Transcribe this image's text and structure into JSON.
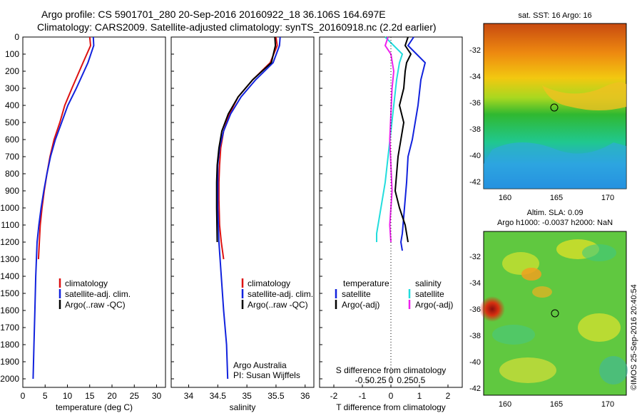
{
  "header": {
    "line1": "Argo profile: CS 5901701_280 20-Sep-2016 20160922_18 36.106S 164.697E",
    "line2": "Climatology: CARS2009. Satellite-adjusted climatology: synTS_20160918.nc (2.2d earlier)"
  },
  "colors": {
    "climatology": "#dd1111",
    "satellite": "#1122dd",
    "argo": "#000000",
    "salinity_sat": "#22dddd",
    "salinity_argo": "#ee22ee"
  },
  "depth_ticks": [
    "0",
    "100",
    "200",
    "300",
    "400",
    "500",
    "600",
    "700",
    "800",
    "900",
    "1000",
    "1100",
    "1200",
    "1300",
    "1400",
    "1500",
    "1600",
    "1700",
    "1800",
    "1900",
    "2000"
  ],
  "legend1": {
    "climatology": "climatology",
    "satellite": "satellite-adj. clim.",
    "argo": "Argo(..raw -QC)"
  },
  "legend3": {
    "temperature": "temperature",
    "salinity": "salinity",
    "t_sat": "satellite",
    "t_argo": "Argo(-adj)",
    "s_sat": "satellite",
    "s_argo": "Argo(-adj)"
  },
  "notes": {
    "line1": "Argo Australia",
    "line2": "PI: Susan Wijffels"
  },
  "map1": {
    "title": "sat. SST: 16 Argo: 16",
    "yticks": [
      "-32",
      "-34",
      "-36",
      "-38",
      "-40",
      "-42"
    ],
    "xticks": [
      "160",
      "165",
      "170"
    ]
  },
  "map2": {
    "title1": "Altim. SLA: 0.09",
    "title2": "Argo h1000: -0.0037 h2000: NaN",
    "yticks": [
      "-32",
      "-34",
      "-36",
      "-38",
      "-40",
      "-42"
    ],
    "xticks": [
      "160",
      "165",
      "170"
    ]
  },
  "credit": "©IMOS 25-Sep-2016 20:40:54",
  "chart_data": [
    {
      "type": "line",
      "xlabel": "temperature (deg C)",
      "ylabel": "",
      "xlim": [
        0,
        32
      ],
      "ylim": [
        2050,
        0
      ],
      "xticks": [
        "0",
        "5",
        "10",
        "15",
        "20",
        "25",
        "30"
      ],
      "series": [
        {
          "name": "climatology",
          "x": [
            15.0,
            15.2,
            13.5,
            11.0,
            9.4,
            8.3,
            7.0,
            6.1,
            5.4,
            4.8,
            4.3,
            3.9,
            3.5
          ],
          "y": [
            0,
            50,
            150,
            300,
            400,
            500,
            600,
            700,
            800,
            900,
            1000,
            1100,
            1300
          ]
        },
        {
          "name": "satellite-adj. clim.",
          "x": [
            15.8,
            15.9,
            14.6,
            12.0,
            10.1,
            8.7,
            7.3,
            6.2,
            5.4,
            4.7,
            4.1,
            3.6,
            3.2,
            2.9,
            2.7,
            2.5,
            2.4,
            2.3
          ],
          "y": [
            0,
            50,
            150,
            300,
            400,
            500,
            600,
            700,
            800,
            900,
            1000,
            1100,
            1200,
            1400,
            1600,
            1800,
            1900,
            2000
          ]
        }
      ]
    },
    {
      "type": "line",
      "xlabel": "salinity",
      "ylabel": "",
      "xlim": [
        33.7,
        36.15
      ],
      "ylim": [
        2050,
        0
      ],
      "xticks": [
        "34",
        "34.5",
        "35",
        "35.5",
        "36"
      ],
      "series": [
        {
          "name": "climatology",
          "x": [
            35.5,
            35.52,
            35.4,
            35.1,
            34.85,
            34.7,
            34.6,
            34.55,
            34.53,
            34.52,
            34.52,
            34.53,
            34.56,
            34.6
          ],
          "y": [
            0,
            50,
            150,
            250,
            350,
            450,
            550,
            650,
            750,
            850,
            950,
            1100,
            1200,
            1300
          ]
        },
        {
          "name": "satellite-adj. clim.",
          "x": [
            35.57,
            35.56,
            35.45,
            35.15,
            34.9,
            34.72,
            34.6,
            34.53,
            34.5,
            34.5,
            34.5,
            34.52,
            34.56,
            34.6,
            34.65,
            34.67
          ],
          "y": [
            0,
            50,
            150,
            250,
            350,
            450,
            550,
            650,
            750,
            850,
            1000,
            1200,
            1400,
            1600,
            1800,
            2000
          ]
        },
        {
          "name": "Argo(..raw -QC)",
          "x": [
            35.48,
            35.49,
            35.42,
            35.1,
            34.85,
            34.68,
            34.57,
            34.52,
            34.49,
            34.48,
            34.48,
            34.49
          ],
          "y": [
            0,
            50,
            150,
            250,
            350,
            450,
            550,
            650,
            750,
            850,
            1000,
            1200
          ]
        }
      ]
    },
    {
      "type": "line",
      "xlabel": "T difference from climatology",
      "x2label": "S difference from climatology",
      "xlim": [
        -2.5,
        2.5
      ],
      "ylim": [
        2050,
        0
      ],
      "xticks": [
        "-2",
        "-1.5",
        "-1",
        "-0.5",
        "0",
        "0.5",
        "1",
        "1.5",
        "2"
      ],
      "xticks_shown": [
        "-2",
        "-1",
        "0",
        "1",
        "2"
      ],
      "x2ticks": [
        "-0.5",
        "-0.25",
        "0",
        "0.25",
        "0.5"
      ],
      "series": [
        {
          "name": "temperature satellite",
          "x": [
            0.8,
            0.6,
            0.9,
            1.2,
            1.05,
            0.95,
            0.8,
            0.75,
            0.6,
            0.55,
            0.5,
            0.45,
            0.4,
            0.35,
            0.4
          ],
          "y": [
            0,
            50,
            100,
            150,
            250,
            400,
            550,
            600,
            700,
            850,
            950,
            1050,
            1150,
            1200,
            1250
          ]
        },
        {
          "name": "temperature Argo(-adj)",
          "x": [
            0.6,
            0.5,
            0.7,
            0.55,
            0.5,
            0.45,
            0.3,
            0.45,
            0.35,
            0.25,
            0.2,
            0.15,
            0.3,
            0.5,
            0.55,
            0.6
          ],
          "y": [
            0,
            50,
            100,
            150,
            200,
            300,
            400,
            500,
            600,
            700,
            800,
            900,
            1000,
            1100,
            1150,
            1200
          ]
        },
        {
          "name": "salinity satellite",
          "x": [
            -0.1,
            0.05,
            0.2,
            0.15,
            0.1,
            0.05,
            0.0,
            -0.05,
            -0.1,
            -0.15,
            -0.2,
            -0.25,
            -0.25
          ],
          "y": [
            0,
            50,
            100,
            150,
            250,
            400,
            550,
            700,
            850,
            950,
            1050,
            1150,
            1200
          ]
        },
        {
          "name": "salinity Argo(-adj)",
          "x": [
            -0.05,
            -0.1,
            0.0,
            0.05,
            0.02,
            0.0,
            -0.02,
            0.0,
            0.02,
            0.0,
            -0.02,
            0.0
          ],
          "y": [
            0,
            50,
            100,
            200,
            300,
            450,
            600,
            750,
            900,
            1000,
            1100,
            1200
          ]
        }
      ]
    }
  ]
}
